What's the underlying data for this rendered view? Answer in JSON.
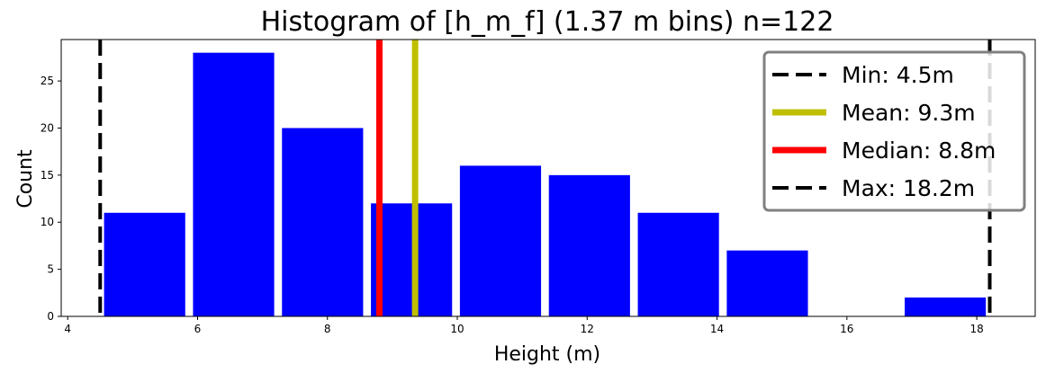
{
  "chart_data": {
    "type": "bar",
    "title": "Histogram of [h_m_f] (1.37 m bins) n=122",
    "xlabel": "Height (m)",
    "ylabel": "Count",
    "xlim": [
      3.9,
      18.9
    ],
    "ylim": [
      0,
      29.4
    ],
    "xticks": [
      4,
      6,
      8,
      10,
      12,
      14,
      16,
      18
    ],
    "yticks": [
      0,
      5,
      10,
      15,
      20,
      25
    ],
    "bar_color": "#0000ff",
    "bin_width": 1.37,
    "bins": [
      {
        "start": 4.5,
        "count": 11
      },
      {
        "start": 5.87,
        "count": 28
      },
      {
        "start": 7.24,
        "count": 20
      },
      {
        "start": 8.61,
        "count": 12
      },
      {
        "start": 9.98,
        "count": 16
      },
      {
        "start": 11.35,
        "count": 15
      },
      {
        "start": 12.72,
        "count": 11
      },
      {
        "start": 14.09,
        "count": 7
      },
      {
        "start": 15.46,
        "count": 0
      },
      {
        "start": 16.83,
        "count": 2
      }
    ],
    "reference_lines": [
      {
        "key": "min",
        "label": "Min: 4.5m",
        "value": 4.5,
        "color": "#000000",
        "style": "dashed"
      },
      {
        "key": "mean",
        "label": "Mean: 9.3m",
        "value": 9.35,
        "color": "#bfbf00",
        "style": "solid"
      },
      {
        "key": "median",
        "label": "Median: 8.8m",
        "value": 8.8,
        "color": "#ff0000",
        "style": "solid"
      },
      {
        "key": "max",
        "label": "Max: 18.2m",
        "value": 18.2,
        "color": "#000000",
        "style": "dashed"
      }
    ],
    "legend_position": "top-right",
    "grid": false
  }
}
